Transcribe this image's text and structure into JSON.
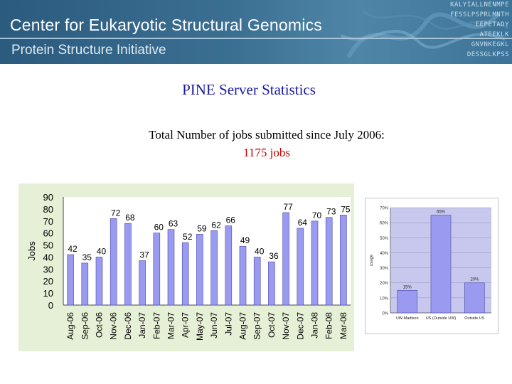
{
  "header": {
    "title": "Center for Eukaryotic Structural Genomics",
    "subtitle": "Protein Structure Initiative",
    "sequence_lines": [
      "KALYIALLNENMPE",
      "FESSLPSPRLMNTH",
      "EEPETADY",
      "ATEEKLK",
      "GNVNKEGKL",
      "DESSGLKPSS"
    ]
  },
  "heading": "PINE Server Statistics",
  "summary": {
    "text": "Total Number of jobs submitted since July 2006:",
    "count": "1175 jobs"
  },
  "colors": {
    "bar_fill": "#9a9af0",
    "bar_edge": "#4a4aa8",
    "left_panel_bg": "#e6f0d6",
    "plot_bg": "#ffffff",
    "header_bg": "#2b5b7e",
    "heading": "#1a1aa0",
    "count": "#c40000",
    "right_plot_bg": "#c8c8ee"
  },
  "chart_data": [
    {
      "type": "bar",
      "ylabel": "Jobs",
      "categories": [
        "Aug-06",
        "Sep-06",
        "Oct-06",
        "Nov-06",
        "Dec-06",
        "Jan-07",
        "Feb-07",
        "Mar-07",
        "Apr-07",
        "May-07",
        "Jun-07",
        "Jul-07",
        "Aug-07",
        "Sep-07",
        "Oct-07",
        "Nov-07",
        "Dec-07",
        "Jan-08",
        "Feb-08",
        "Mar-08"
      ],
      "values": [
        42,
        35,
        40,
        72,
        68,
        37,
        60,
        63,
        52,
        59,
        62,
        66,
        49,
        40,
        36,
        77,
        64,
        70,
        73,
        75
      ],
      "value_labels": [
        "42",
        "35",
        "40",
        "72",
        "68",
        "37",
        "60",
        "63",
        "52",
        "59",
        "62",
        "66",
        "49",
        "40",
        "36",
        "77",
        "64",
        "70",
        "73",
        "75"
      ],
      "ylim": [
        0,
        90
      ],
      "yticks": [
        "0",
        "10",
        "20",
        "30",
        "40",
        "50",
        "60",
        "70",
        "80",
        "90"
      ],
      "grid": false
    },
    {
      "type": "bar",
      "ylabel": "usage",
      "categories": [
        "UW-Madison",
        "US (Outside UW)",
        "Outside US"
      ],
      "values": [
        15,
        65,
        20
      ],
      "value_labels": [
        "15%",
        "65%",
        "20%"
      ],
      "ylim": [
        0,
        70
      ],
      "yticks": [
        "0%",
        "10%",
        "20%",
        "30%",
        "40%",
        "50%",
        "60%",
        "70%"
      ],
      "grid": true
    }
  ]
}
